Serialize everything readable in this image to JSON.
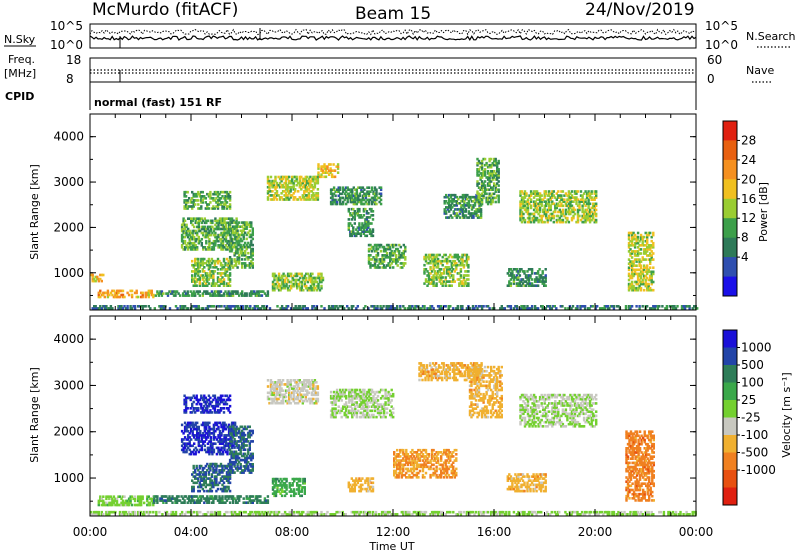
{
  "header": {
    "station": "McMurdo (fitACF)",
    "beam": "Beam 15",
    "date": "24/Nov/2019"
  },
  "noise_panel": {
    "left_label": "N.Sky",
    "right_label": "N.Search",
    "left_ticks": [
      "10^5",
      "10^0"
    ],
    "right_ticks": [
      "10^5",
      "10^0"
    ]
  },
  "freq_panel": {
    "left_label_line1": "Freq.",
    "left_label_line2": "[MHz]",
    "right_label": "Nave",
    "left_ticks": [
      "18",
      "8"
    ],
    "right_ticks": [
      "60",
      "0"
    ]
  },
  "cpid": {
    "label": "CPID",
    "text": "normal (fast) 151 RF"
  },
  "power_panel": {
    "ylabel": "Slant Range [km]",
    "yticks": [
      "4000",
      "3000",
      "2000",
      "1000"
    ],
    "colorbar_label": "Power [dB]",
    "colorbar_ticks": [
      "28",
      "24",
      "20",
      "16",
      "12",
      "8",
      "4"
    ],
    "colors": [
      "#1a10e8",
      "#2f4fb0",
      "#2e7a58",
      "#3c9f4a",
      "#9acd32",
      "#f0c020",
      "#f59020",
      "#e86010",
      "#e02010"
    ]
  },
  "velocity_panel": {
    "ylabel": "Slant Range [km]",
    "yticks": [
      "4000",
      "3000",
      "2000",
      "1000"
    ],
    "colorbar_label": "Velocity [m s⁻¹]",
    "colorbar_ticks": [
      "1000",
      "500",
      "100",
      "25",
      "-25",
      "-100",
      "-500",
      "-1000"
    ],
    "colors": [
      "#1a10d8",
      "#2244a8",
      "#2e7d58",
      "#3aa84a",
      "#74d030",
      "#c8c8c0",
      "#f0b030",
      "#f08020",
      "#e85010",
      "#e02010"
    ]
  },
  "x_axis": {
    "label": "Time UT",
    "ticks": [
      "00:00",
      "04:00",
      "08:00",
      "12:00",
      "16:00",
      "20:00",
      "00:00"
    ]
  },
  "chart_data": [
    {
      "type": "line",
      "title": "McMurdo (fitACF) Beam 15 24/Nov/2019",
      "xlabel": "Time UT",
      "ylabel": "N.Sky / N.Search",
      "x_range_hours": [
        0,
        24
      ],
      "note": "noise levels, log scale 10^0 to 10^5"
    },
    {
      "type": "heatmap",
      "xlabel": "Time UT",
      "ylabel": "Slant Range [km]",
      "x_range_hours": [
        0,
        24
      ],
      "ylim": [
        180,
        4500
      ],
      "value_label": "Power [dB]",
      "value_range": [
        0,
        30
      ],
      "patches": [
        {
          "t0": 0.0,
          "t1": 0.5,
          "r0": 800,
          "r1": 950,
          "value": 18
        },
        {
          "t0": 0.3,
          "t1": 2.5,
          "r0": 450,
          "r1": 600,
          "value": 20
        },
        {
          "t0": 2.5,
          "t1": 7.0,
          "r0": 480,
          "r1": 600,
          "value": 10
        },
        {
          "t0": 3.7,
          "t1": 5.5,
          "r0": 2400,
          "r1": 2800,
          "value": 12
        },
        {
          "t0": 3.6,
          "t1": 5.8,
          "r0": 1500,
          "r1": 2200,
          "value": 12
        },
        {
          "t0": 4.0,
          "t1": 5.5,
          "r0": 700,
          "r1": 1300,
          "value": 14
        },
        {
          "t0": 5.5,
          "t1": 6.4,
          "r0": 1100,
          "r1": 2100,
          "value": 12
        },
        {
          "t0": 7.0,
          "t1": 9.0,
          "r0": 2600,
          "r1": 3100,
          "value": 16
        },
        {
          "t0": 7.2,
          "t1": 9.2,
          "r0": 600,
          "r1": 1000,
          "value": 14
        },
        {
          "t0": 9.0,
          "t1": 9.8,
          "r0": 3100,
          "r1": 3400,
          "value": 18
        },
        {
          "t0": 9.5,
          "t1": 11.5,
          "r0": 2500,
          "r1": 2900,
          "value": 10
        },
        {
          "t0": 10.2,
          "t1": 11.2,
          "r0": 1800,
          "r1": 2400,
          "value": 10
        },
        {
          "t0": 11.0,
          "t1": 12.5,
          "r0": 1100,
          "r1": 1600,
          "value": 12
        },
        {
          "t0": 13.2,
          "t1": 15.0,
          "r0": 700,
          "r1": 1400,
          "value": 14
        },
        {
          "t0": 14.0,
          "t1": 15.5,
          "r0": 2200,
          "r1": 2700,
          "value": 10
        },
        {
          "t0": 15.3,
          "t1": 16.2,
          "r0": 2500,
          "r1": 3500,
          "value": 12
        },
        {
          "t0": 16.5,
          "t1": 18.0,
          "r0": 700,
          "r1": 1100,
          "value": 10
        },
        {
          "t0": 17.0,
          "t1": 20.0,
          "r0": 2100,
          "r1": 2800,
          "value": 15
        },
        {
          "t0": 21.3,
          "t1": 22.3,
          "r0": 600,
          "r1": 1900,
          "value": 16
        },
        {
          "t0": 0.0,
          "t1": 24.0,
          "r0": 200,
          "r1": 280,
          "value": 8
        }
      ]
    },
    {
      "type": "heatmap",
      "xlabel": "Time UT",
      "ylabel": "Slant Range [km]",
      "x_range_hours": [
        0,
        24
      ],
      "ylim": [
        180,
        4500
      ],
      "value_label": "Velocity [m s⁻¹]",
      "value_range": [
        -1000,
        1000
      ],
      "patches": [
        {
          "t0": 0.3,
          "t1": 2.5,
          "r0": 400,
          "r1": 600,
          "value": 100
        },
        {
          "t0": 2.5,
          "t1": 7.0,
          "r0": 450,
          "r1": 600,
          "value": 500
        },
        {
          "t0": 3.7,
          "t1": 5.5,
          "r0": 2400,
          "r1": 2800,
          "value": 800
        },
        {
          "t0": 3.6,
          "t1": 5.8,
          "r0": 1500,
          "r1": 2200,
          "value": 800
        },
        {
          "t0": 4.0,
          "t1": 5.5,
          "r0": 700,
          "r1": 1300,
          "value": 600
        },
        {
          "t0": 5.5,
          "t1": 6.4,
          "r0": 1100,
          "r1": 2100,
          "value": 600
        },
        {
          "t0": 7.0,
          "t1": 9.0,
          "r0": 2600,
          "r1": 3100,
          "value": -100
        },
        {
          "t0": 7.2,
          "t1": 8.5,
          "r0": 600,
          "r1": 1000,
          "value": 300
        },
        {
          "t0": 9.5,
          "t1": 12.0,
          "r0": 2300,
          "r1": 2900,
          "value": 0
        },
        {
          "t0": 10.2,
          "t1": 11.2,
          "r0": 700,
          "r1": 1000,
          "value": -300
        },
        {
          "t0": 12.0,
          "t1": 14.5,
          "r0": 1000,
          "r1": 1600,
          "value": -400
        },
        {
          "t0": 13.0,
          "t1": 15.5,
          "r0": 3100,
          "r1": 3500,
          "value": -300
        },
        {
          "t0": 15.0,
          "t1": 16.3,
          "r0": 2300,
          "r1": 3400,
          "value": -300
        },
        {
          "t0": 16.5,
          "t1": 18.0,
          "r0": 700,
          "r1": 1100,
          "value": -300
        },
        {
          "t0": 17.0,
          "t1": 20.0,
          "r0": 2100,
          "r1": 2800,
          "value": 0
        },
        {
          "t0": 21.2,
          "t1": 22.3,
          "r0": 500,
          "r1": 2000,
          "value": -500
        },
        {
          "t0": 0.0,
          "t1": 24.0,
          "r0": 200,
          "r1": 280,
          "value": 50
        }
      ]
    }
  ]
}
